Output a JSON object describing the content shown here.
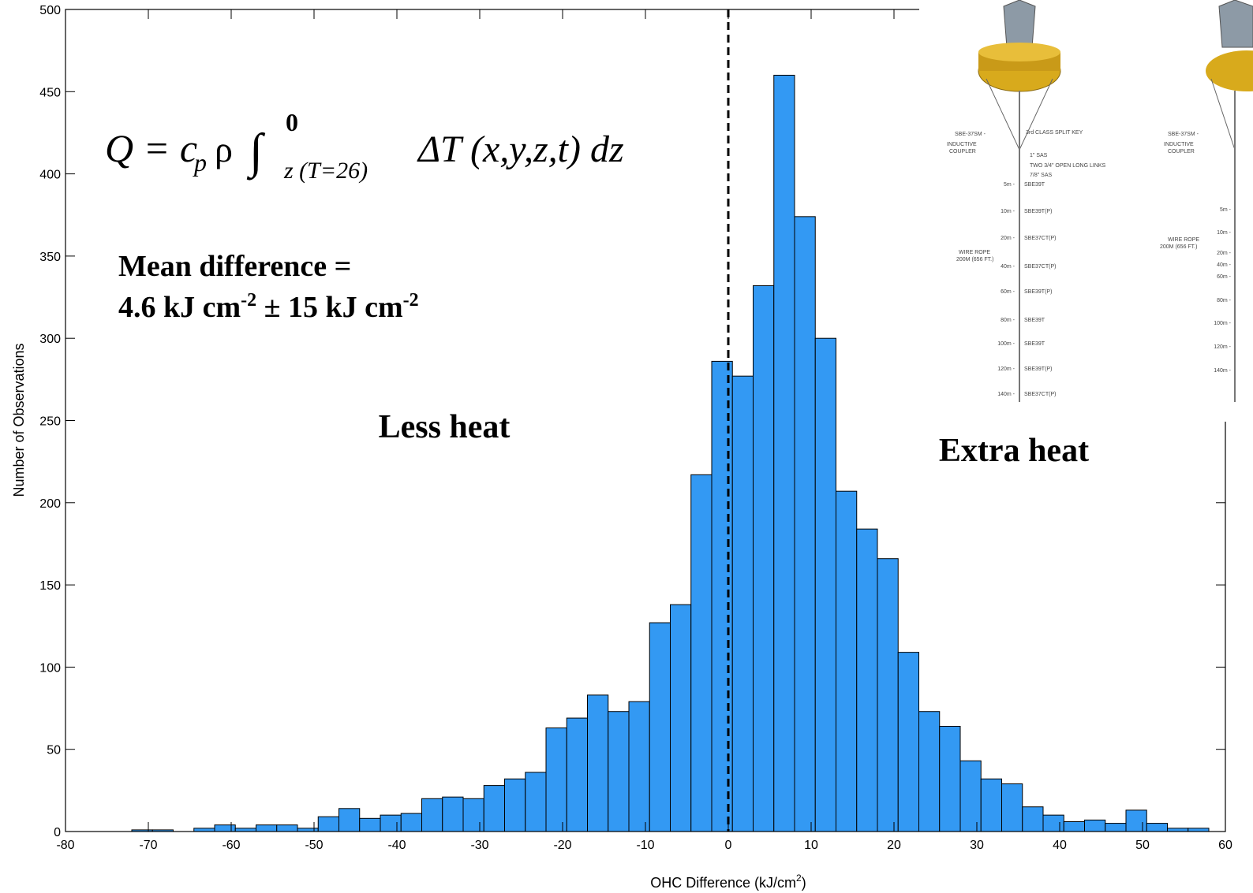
{
  "chart_data": {
    "type": "histogram",
    "xlabel": {
      "text": "OHC Difference (kJ/cm",
      "sup": "2",
      "end": ")"
    },
    "ylabel": "Number of Observations",
    "bins": [
      -72,
      -69.5,
      -67,
      -64.5,
      -62,
      -59.5,
      -57,
      -54.5,
      -52,
      -49.5,
      -47,
      -44.5,
      -42,
      -39.5,
      -37,
      -34.5,
      -32,
      -29.5,
      -27,
      -24.5,
      -22,
      -19.5,
      -17,
      -14.5,
      -12,
      -9.5,
      -7,
      -4.5,
      -2,
      0.5,
      3,
      5.5,
      8,
      10.5,
      13,
      15.5,
      18,
      20.5,
      23,
      25.5,
      28,
      30.5,
      33,
      35.5,
      38,
      40.5,
      43,
      45.5,
      48,
      50.5,
      53,
      55.5,
      58
    ],
    "values": [
      1,
      1,
      0,
      2,
      4,
      2,
      4,
      4,
      2,
      9,
      14,
      8,
      10,
      11,
      20,
      21,
      20,
      28,
      32,
      36,
      63,
      69,
      83,
      73,
      79,
      127,
      138,
      217,
      286,
      277,
      332,
      460,
      374,
      300,
      207,
      184,
      166,
      109,
      73,
      64,
      43,
      32,
      29,
      15,
      10,
      6,
      7,
      5,
      13,
      5,
      2,
      2
    ],
    "color": "#3399f3",
    "xlim": [
      -80,
      60
    ],
    "xticks": [
      -80,
      -70,
      -60,
      -50,
      -40,
      -30,
      -20,
      -10,
      0,
      10,
      20,
      30,
      40,
      50,
      60
    ],
    "ylim": [
      0,
      500
    ],
    "yticks": [
      0,
      50,
      100,
      150,
      200,
      250,
      300,
      350,
      400,
      450,
      500
    ],
    "vline": 0,
    "equation": {
      "lhs": "Q = c",
      "sub": "p",
      "rho": "ρ",
      "integral": "∫",
      "upper": "0",
      "lower": "z (T=26)",
      "rest": "ΔT (x,y,z,t) dz"
    },
    "annotations": {
      "mean_line1": "Mean difference =",
      "mean_a": "4.6 kJ cm",
      "sup_a": "-2",
      "mean_b": " ± 15 kJ cm",
      "sup_b": "-2",
      "less": "Less heat",
      "extra": "Extra heat"
    }
  },
  "inset": {
    "left": {
      "top_labels": [
        "SBE-37SM -",
        "3rd CLASS SPLIT KEY",
        "INDUCTIVE",
        "COUPLER",
        "1\" SAS",
        "TWO 3/4\" OPEN LONG LINKS",
        "7/8\" SAS",
        "WIRE ROPE",
        "200M (656 FT.)"
      ],
      "depths": [
        "5m -",
        "10m -",
        "20m -",
        "40m -",
        "60m -",
        "80m -",
        "100m -",
        "120m -",
        "140m -"
      ],
      "instruments": [
        "SBE39T",
        "SBE39T(P)",
        "SBE37CT(P)",
        "SBE37CT(P)",
        "SBE39T(P)",
        "SBE39T",
        "SBE39T",
        "SBE39T(P)",
        "SBE37CT(P)"
      ]
    },
    "right": {
      "top_labels": [
        "SBE-37SM -",
        "INDUCTIVE",
        "COUPLER",
        "WIRE ROPE",
        "200M (656 FT.)"
      ],
      "depths": [
        "5m -",
        "10m -",
        "20m -",
        "40m -",
        "60m -",
        "80m -",
        "100m -",
        "120m -",
        "140m -"
      ]
    }
  }
}
